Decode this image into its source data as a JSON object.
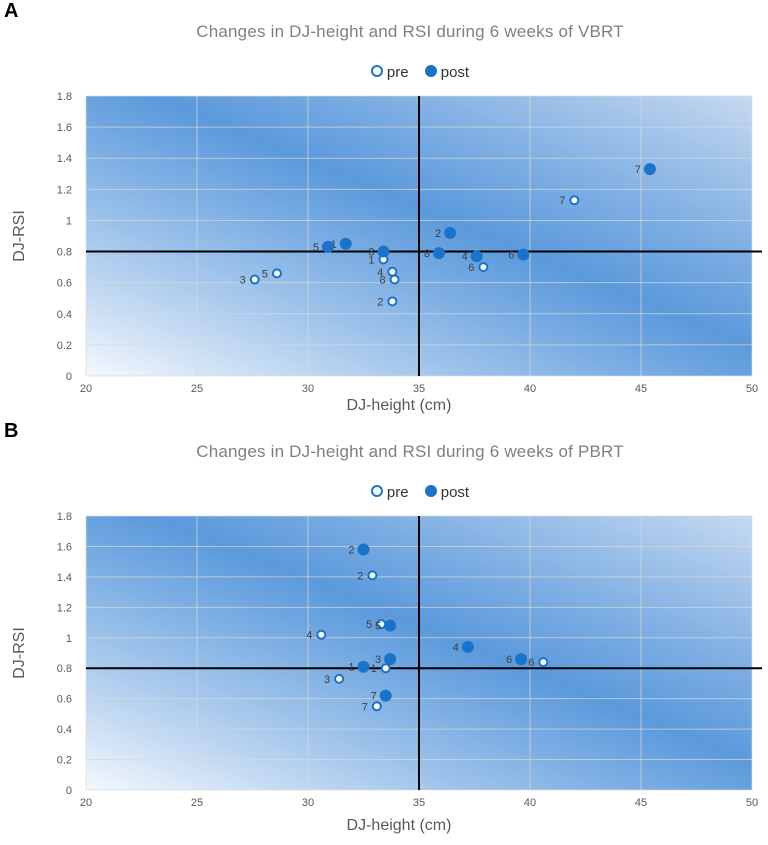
{
  "chart_data": [
    {
      "type": "scatter",
      "panel": "A",
      "title": "Changes in DJ-height and RSI during 6 weeks of VBRT",
      "xlabel": "DJ-height (cm)",
      "ylabel": "DJ-RSI",
      "xlim": [
        20,
        50
      ],
      "ylim": [
        0,
        1.8
      ],
      "xticks": [
        "20",
        "25",
        "30",
        "35",
        "40",
        "45",
        "50"
      ],
      "yticks": [
        "0",
        "0.2",
        "0.4",
        "0.6",
        "0.8",
        "1",
        "1.2",
        "1.4",
        "1.6",
        "1.8"
      ],
      "reference_lines": {
        "x": 35,
        "y": 0.8
      },
      "legend": [
        "pre",
        "post"
      ],
      "series": [
        {
          "name": "pre",
          "points": [
            {
              "label": "1",
              "x": 33.4,
              "y": 0.75
            },
            {
              "label": "2",
              "x": 33.8,
              "y": 0.48
            },
            {
              "label": "3",
              "x": 27.6,
              "y": 0.62
            },
            {
              "label": "4",
              "x": 33.8,
              "y": 0.67
            },
            {
              "label": "5",
              "x": 28.6,
              "y": 0.66
            },
            {
              "label": "6",
              "x": 37.9,
              "y": 0.7
            },
            {
              "label": "7",
              "x": 42.0,
              "y": 1.13
            },
            {
              "label": "8",
              "x": 33.9,
              "y": 0.62
            }
          ]
        },
        {
          "name": "post",
          "points": [
            {
              "label": "1",
              "x": 31.7,
              "y": 0.85
            },
            {
              "label": "2",
              "x": 36.4,
              "y": 0.92
            },
            {
              "label": "3",
              "x": 33.4,
              "y": 0.8
            },
            {
              "label": "4",
              "x": 37.6,
              "y": 0.77
            },
            {
              "label": "5",
              "x": 30.9,
              "y": 0.83
            },
            {
              "label": "6",
              "x": 39.7,
              "y": 0.78
            },
            {
              "label": "7",
              "x": 45.4,
              "y": 1.33
            },
            {
              "label": "8",
              "x": 35.9,
              "y": 0.79
            }
          ]
        }
      ]
    },
    {
      "type": "scatter",
      "panel": "B",
      "title": "Changes in DJ-height and RSI during 6 weeks of PBRT",
      "xlabel": "DJ-height (cm)",
      "ylabel": "DJ-RSI",
      "xlim": [
        20,
        50
      ],
      "ylim": [
        0,
        1.8
      ],
      "xticks": [
        "20",
        "25",
        "30",
        "35",
        "40",
        "45",
        "50"
      ],
      "yticks": [
        "0",
        "0.2",
        "0.4",
        "0.6",
        "0.8",
        "1",
        "1.2",
        "1.4",
        "1.6",
        "1.8"
      ],
      "reference_lines": {
        "x": 35,
        "y": 0.8
      },
      "legend": [
        "pre",
        "post"
      ],
      "series": [
        {
          "name": "pre",
          "points": [
            {
              "label": "1",
              "x": 33.5,
              "y": 0.8
            },
            {
              "label": "2",
              "x": 32.9,
              "y": 1.41
            },
            {
              "label": "3",
              "x": 31.4,
              "y": 0.73
            },
            {
              "label": "4",
              "x": 30.6,
              "y": 1.02
            },
            {
              "label": "5",
              "x": 33.3,
              "y": 1.09
            },
            {
              "label": "6",
              "x": 40.6,
              "y": 0.84
            },
            {
              "label": "7",
              "x": 33.1,
              "y": 0.55
            }
          ]
        },
        {
          "name": "post",
          "points": [
            {
              "label": "1",
              "x": 32.5,
              "y": 0.81
            },
            {
              "label": "2",
              "x": 32.5,
              "y": 1.58
            },
            {
              "label": "3",
              "x": 33.7,
              "y": 0.86
            },
            {
              "label": "4",
              "x": 37.2,
              "y": 0.94
            },
            {
              "label": "5",
              "x": 33.7,
              "y": 1.08
            },
            {
              "label": "6",
              "x": 39.6,
              "y": 0.86
            },
            {
              "label": "7",
              "x": 33.5,
              "y": 0.62
            }
          ]
        }
      ]
    }
  ],
  "panels": [
    {
      "letter": "A",
      "title": "Changes in DJ-height and RSI during 6 weeks of VBRT",
      "legend_pre": "pre",
      "legend_post": "post"
    },
    {
      "letter": "B",
      "title": "Changes in DJ-height and RSI during 6 weeks of PBRT",
      "legend_pre": "pre",
      "legend_post": "post"
    }
  ],
  "colors": {
    "marker": "#1a73c8",
    "axis_lines": "#000000",
    "grid": "#d9d9d9",
    "gradient_dark": "#3f88d6",
    "gradient_light": "#f4f8fd"
  }
}
